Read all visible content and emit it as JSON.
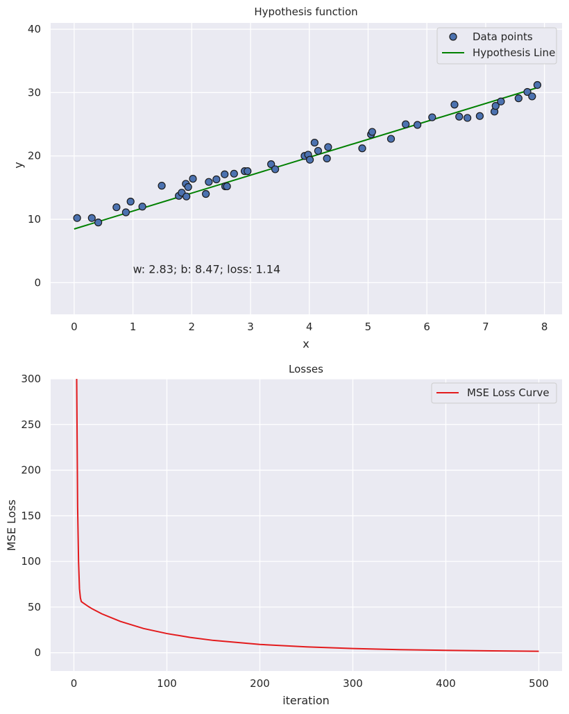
{
  "colors": {
    "plot_bg": "#eaeaf2",
    "grid": "#ffffff",
    "point_fill": "#4c72b0",
    "point_edge": "#1a1a1a",
    "line_green": "#008000",
    "line_red": "#e31a1c"
  },
  "chart_data": [
    {
      "type": "scatter",
      "title": "Hypothesis function",
      "xlabel": "x",
      "ylabel": "y",
      "xlim": [
        -0.4,
        8.3
      ],
      "ylim": [
        -5,
        41
      ],
      "xticks": [
        0,
        1,
        2,
        3,
        4,
        5,
        6,
        7,
        8
      ],
      "yticks": [
        0,
        10,
        20,
        30,
        40
      ],
      "grid": true,
      "legend_position": "top-right",
      "annotation": {
        "text": "w: 2.83; b: 8.47; loss: 1.14",
        "x": 1.0,
        "y": 1.5
      },
      "series": [
        {
          "name": "Data points",
          "kind": "scatter",
          "points": [
            [
              0.05,
              10.2
            ],
            [
              0.3,
              10.2
            ],
            [
              0.41,
              9.5
            ],
            [
              0.72,
              11.9
            ],
            [
              0.88,
              11.1
            ],
            [
              0.96,
              12.8
            ],
            [
              1.16,
              12.0
            ],
            [
              1.49,
              15.3
            ],
            [
              1.78,
              13.7
            ],
            [
              1.83,
              14.2
            ],
            [
              1.9,
              15.6
            ],
            [
              1.91,
              13.6
            ],
            [
              1.94,
              15.1
            ],
            [
              2.02,
              16.4
            ],
            [
              2.24,
              14.0
            ],
            [
              2.29,
              15.9
            ],
            [
              2.42,
              16.3
            ],
            [
              2.56,
              17.1
            ],
            [
              2.57,
              15.2
            ],
            [
              2.6,
              15.2
            ],
            [
              2.72,
              17.2
            ],
            [
              2.9,
              17.6
            ],
            [
              2.95,
              17.6
            ],
            [
              3.35,
              18.7
            ],
            [
              3.42,
              17.9
            ],
            [
              3.92,
              20.0
            ],
            [
              3.98,
              20.2
            ],
            [
              4.01,
              19.4
            ],
            [
              4.09,
              22.1
            ],
            [
              4.15,
              20.8
            ],
            [
              4.3,
              19.6
            ],
            [
              4.32,
              21.4
            ],
            [
              4.9,
              21.2
            ],
            [
              5.05,
              23.4
            ],
            [
              5.07,
              23.8
            ],
            [
              5.39,
              22.7
            ],
            [
              5.64,
              25.0
            ],
            [
              5.84,
              24.9
            ],
            [
              6.09,
              26.1
            ],
            [
              6.47,
              28.1
            ],
            [
              6.55,
              26.2
            ],
            [
              6.69,
              26.0
            ],
            [
              6.9,
              26.3
            ],
            [
              7.15,
              27.0
            ],
            [
              7.17,
              27.9
            ],
            [
              7.26,
              28.6
            ],
            [
              7.56,
              29.1
            ],
            [
              7.71,
              30.1
            ],
            [
              7.79,
              29.4
            ],
            [
              7.88,
              31.2
            ]
          ]
        },
        {
          "name": "Hypothesis Line",
          "kind": "line",
          "points": [
            [
              0.0,
              8.47
            ],
            [
              7.9,
              30.83
            ]
          ]
        }
      ]
    },
    {
      "type": "line",
      "title": "Losses",
      "xlabel": "iteration",
      "ylabel": "MSE Loss",
      "xlim": [
        -25,
        525
      ],
      "ylim": [
        -20,
        300
      ],
      "xticks": [
        0,
        100,
        200,
        300,
        400,
        500
      ],
      "yticks": [
        0,
        50,
        100,
        150,
        200,
        250,
        300
      ],
      "grid": true,
      "legend_position": "top-right",
      "series": [
        {
          "name": "MSE Loss Curve",
          "x": [
            3,
            4,
            5,
            6,
            7,
            8,
            10,
            15,
            20,
            30,
            50,
            75,
            100,
            125,
            150,
            200,
            250,
            300,
            350,
            400,
            450,
            500
          ],
          "y": [
            300,
            160,
            100,
            70,
            60,
            56,
            54.5,
            51,
            47.9,
            42.6,
            34.3,
            26.5,
            21.0,
            16.8,
            13.5,
            9.1,
            6.4,
            4.6,
            3.4,
            2.6,
            2.0,
            1.6
          ]
        }
      ]
    }
  ]
}
